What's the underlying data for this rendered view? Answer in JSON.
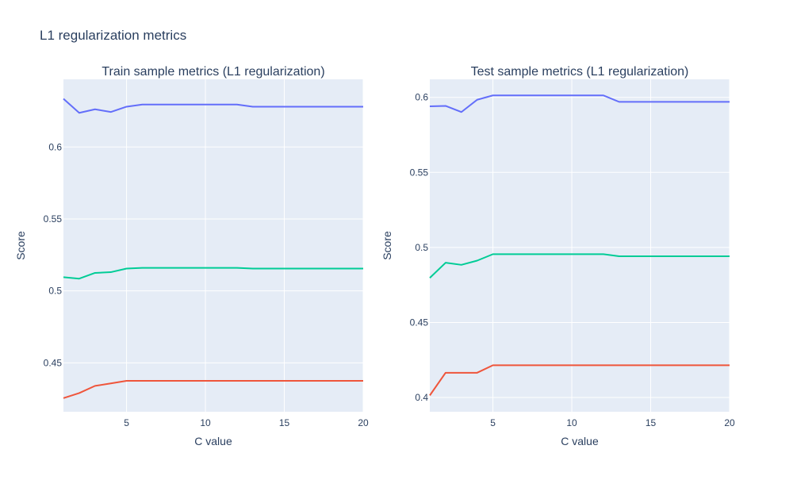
{
  "figure_title": "L1 regularization metrics",
  "colors": {
    "plot_bg": "#E5ECF6",
    "grid": "#FFFFFF",
    "text": "#2A3F5F",
    "series_top": "#636EFA",
    "series_mid": "#00CC96",
    "series_bottom": "#EF553B"
  },
  "chart_data": [
    {
      "type": "line",
      "title": "Train sample metrics (L1 regularization)",
      "xlabel": "C value",
      "ylabel": "Score",
      "xlim": [
        1,
        20
      ],
      "ylim": [
        0.416,
        0.647
      ],
      "xticks": [
        5,
        10,
        15,
        20
      ],
      "yticks": [
        0.45,
        0.5,
        0.55,
        0.6
      ],
      "grid": true,
      "x": [
        1,
        2,
        3,
        4,
        5,
        6,
        7,
        8,
        9,
        10,
        11,
        12,
        13,
        14,
        15,
        16,
        17,
        18,
        19,
        20
      ],
      "series": [
        {
          "values": [
            0.6335,
            0.6237,
            0.6262,
            0.6243,
            0.628,
            0.6295,
            0.6295,
            0.6295,
            0.6295,
            0.6295,
            0.6295,
            0.6295,
            0.628,
            0.628,
            0.628,
            0.628,
            0.628,
            0.628,
            0.628,
            0.628
          ]
        },
        {
          "values": [
            0.5095,
            0.5085,
            0.5125,
            0.513,
            0.5155,
            0.516,
            0.516,
            0.516,
            0.516,
            0.516,
            0.516,
            0.516,
            0.5155,
            0.5155,
            0.5155,
            0.5155,
            0.5155,
            0.5155,
            0.5155,
            0.5155
          ]
        },
        {
          "values": [
            0.4255,
            0.429,
            0.434,
            0.4357,
            0.4375,
            0.4375,
            0.4375,
            0.4375,
            0.4375,
            0.4375,
            0.4375,
            0.4375,
            0.4375,
            0.4375,
            0.4375,
            0.4375,
            0.4375,
            0.4375,
            0.4375,
            0.4375
          ]
        }
      ]
    },
    {
      "type": "line",
      "title": "Test sample metrics (L1 regularization)",
      "xlabel": "C value",
      "ylabel": "Score",
      "xlim": [
        1,
        20
      ],
      "ylim": [
        0.3905,
        0.612
      ],
      "xticks": [
        5,
        10,
        15,
        20
      ],
      "yticks": [
        0.4,
        0.45,
        0.5,
        0.55,
        0.6
      ],
      "grid": true,
      "x": [
        1,
        2,
        3,
        4,
        5,
        6,
        7,
        8,
        9,
        10,
        11,
        12,
        13,
        14,
        15,
        16,
        17,
        18,
        19,
        20
      ],
      "series": [
        {
          "values": [
            0.594,
            0.5943,
            0.5902,
            0.5984,
            0.6013,
            0.6013,
            0.6013,
            0.6013,
            0.6013,
            0.6013,
            0.6013,
            0.6013,
            0.597,
            0.597,
            0.597,
            0.597,
            0.597,
            0.597,
            0.597,
            0.597
          ]
        },
        {
          "values": [
            0.4797,
            0.4898,
            0.4884,
            0.4912,
            0.4955,
            0.4955,
            0.4955,
            0.4955,
            0.4955,
            0.4955,
            0.4955,
            0.4955,
            0.4941,
            0.4941,
            0.4941,
            0.4941,
            0.4941,
            0.4941,
            0.4941,
            0.4941
          ]
        },
        {
          "values": [
            0.4014,
            0.4165,
            0.4165,
            0.4165,
            0.4215,
            0.4215,
            0.4215,
            0.4215,
            0.4215,
            0.4215,
            0.4215,
            0.4215,
            0.4215,
            0.4215,
            0.4215,
            0.4215,
            0.4215,
            0.4215,
            0.4215,
            0.4215
          ]
        }
      ]
    }
  ]
}
